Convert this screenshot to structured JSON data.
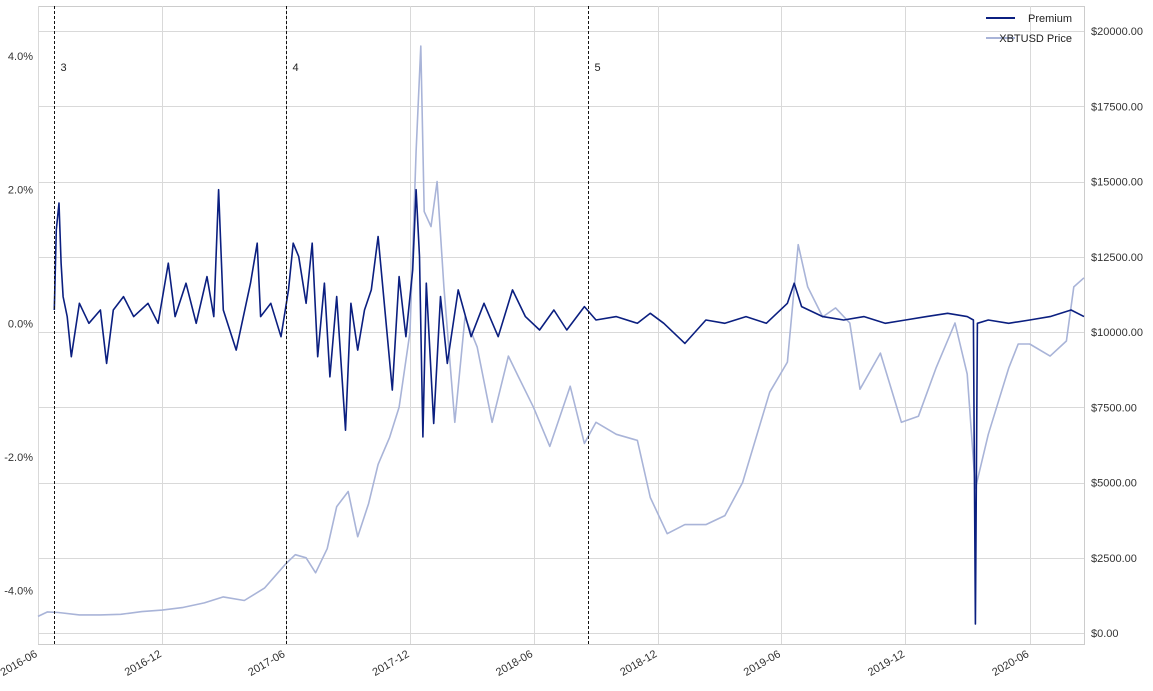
{
  "chart_data": {
    "type": "line",
    "title": "",
    "xlabel": "",
    "ylabel_left": "",
    "ylabel_right": "",
    "grid": true,
    "legend_position": "top-right",
    "x_range": [
      "2016-06-01",
      "2020-08-20"
    ],
    "y_left_range": [
      -4.8,
      4.75
    ],
    "y_right_range": [
      0,
      20000
    ],
    "y_left_ticks": [
      -4.0,
      -2.0,
      0.0,
      2.0,
      4.0
    ],
    "y_left_tick_labels": [
      "-4.0%",
      "-2.0%",
      "0.0%",
      "2.0%",
      "4.0%"
    ],
    "y_right_ticks": [
      0,
      2500,
      5000,
      7500,
      10000,
      12500,
      15000,
      17500,
      20000
    ],
    "y_right_tick_labels": [
      "$0.00",
      "$2500.00",
      "$5000.00",
      "$7500.00",
      "$10000.00",
      "$12500.00",
      "$15000.00",
      "$17500.00",
      "$20000.00"
    ],
    "x_ticks": [
      "2016-06-01",
      "2016-12-01",
      "2017-06-01",
      "2017-12-01",
      "2018-06-01",
      "2018-12-01",
      "2019-06-01",
      "2019-12-01",
      "2020-06-01"
    ],
    "x_tick_labels": [
      "2016-06",
      "2016-12",
      "2017-06",
      "2017-12",
      "2018-06",
      "2018-12",
      "2019-06",
      "2019-12",
      "2020-06"
    ],
    "vlines": [
      {
        "date": "2016-06-25",
        "label": "3"
      },
      {
        "date": "2017-06-01",
        "label": "4"
      },
      {
        "date": "2018-08-20",
        "label": "5"
      }
    ],
    "series": [
      {
        "name": "Premium",
        "axis": "left",
        "color": "#0b1f80",
        "points": [
          [
            "2016-06-25",
            0.2
          ],
          [
            "2016-06-28",
            1.4
          ],
          [
            "2016-07-02",
            1.8
          ],
          [
            "2016-07-05",
            0.9
          ],
          [
            "2016-07-08",
            0.4
          ],
          [
            "2016-07-14",
            0.1
          ],
          [
            "2016-07-20",
            -0.5
          ],
          [
            "2016-08-01",
            0.3
          ],
          [
            "2016-08-15",
            0.0
          ],
          [
            "2016-09-01",
            0.2
          ],
          [
            "2016-09-10",
            -0.6
          ],
          [
            "2016-09-20",
            0.2
          ],
          [
            "2016-10-05",
            0.4
          ],
          [
            "2016-10-20",
            0.1
          ],
          [
            "2016-11-10",
            0.3
          ],
          [
            "2016-11-25",
            0.0
          ],
          [
            "2016-12-10",
            0.9
          ],
          [
            "2016-12-20",
            0.1
          ],
          [
            "2017-01-05",
            0.6
          ],
          [
            "2017-01-20",
            0.0
          ],
          [
            "2017-02-05",
            0.7
          ],
          [
            "2017-02-15",
            0.1
          ],
          [
            "2017-02-22",
            2.0
          ],
          [
            "2017-03-01",
            0.2
          ],
          [
            "2017-03-20",
            -0.4
          ],
          [
            "2017-04-10",
            0.6
          ],
          [
            "2017-04-20",
            1.2
          ],
          [
            "2017-04-25",
            0.1
          ],
          [
            "2017-05-10",
            0.3
          ],
          [
            "2017-05-25",
            -0.2
          ],
          [
            "2017-06-05",
            0.5
          ],
          [
            "2017-06-12",
            1.2
          ],
          [
            "2017-06-20",
            1.0
          ],
          [
            "2017-07-01",
            0.3
          ],
          [
            "2017-07-10",
            1.2
          ],
          [
            "2017-07-18",
            -0.5
          ],
          [
            "2017-07-28",
            0.6
          ],
          [
            "2017-08-05",
            -0.8
          ],
          [
            "2017-08-15",
            0.4
          ],
          [
            "2017-08-28",
            -1.6
          ],
          [
            "2017-09-05",
            0.3
          ],
          [
            "2017-09-15",
            -0.4
          ],
          [
            "2017-09-25",
            0.2
          ],
          [
            "2017-10-05",
            0.5
          ],
          [
            "2017-10-15",
            1.3
          ],
          [
            "2017-10-25",
            0.2
          ],
          [
            "2017-11-05",
            -1.0
          ],
          [
            "2017-11-15",
            0.7
          ],
          [
            "2017-11-25",
            -0.2
          ],
          [
            "2017-12-05",
            0.8
          ],
          [
            "2017-12-10",
            2.0
          ],
          [
            "2017-12-15",
            1.0
          ],
          [
            "2017-12-20",
            -1.7
          ],
          [
            "2017-12-25",
            0.6
          ],
          [
            "2018-01-05",
            -1.5
          ],
          [
            "2018-01-15",
            0.4
          ],
          [
            "2018-01-25",
            -0.6
          ],
          [
            "2018-02-10",
            0.5
          ],
          [
            "2018-03-01",
            -0.2
          ],
          [
            "2018-03-20",
            0.3
          ],
          [
            "2018-04-10",
            -0.2
          ],
          [
            "2018-05-01",
            0.5
          ],
          [
            "2018-05-20",
            0.1
          ],
          [
            "2018-06-10",
            -0.1
          ],
          [
            "2018-07-01",
            0.2
          ],
          [
            "2018-07-20",
            -0.1
          ],
          [
            "2018-08-15",
            0.25
          ],
          [
            "2018-09-01",
            0.05
          ],
          [
            "2018-10-01",
            0.1
          ],
          [
            "2018-11-01",
            0.0
          ],
          [
            "2018-11-20",
            0.15
          ],
          [
            "2018-12-10",
            0.0
          ],
          [
            "2019-01-10",
            -0.3
          ],
          [
            "2019-02-10",
            0.05
          ],
          [
            "2019-03-10",
            0.0
          ],
          [
            "2019-04-10",
            0.1
          ],
          [
            "2019-05-10",
            0.0
          ],
          [
            "2019-06-10",
            0.3
          ],
          [
            "2019-06-20",
            0.6
          ],
          [
            "2019-07-01",
            0.25
          ],
          [
            "2019-08-01",
            0.1
          ],
          [
            "2019-09-01",
            0.05
          ],
          [
            "2019-10-01",
            0.1
          ],
          [
            "2019-11-01",
            0.0
          ],
          [
            "2019-12-01",
            0.05
          ],
          [
            "2020-01-01",
            0.1
          ],
          [
            "2020-02-01",
            0.15
          ],
          [
            "2020-03-01",
            0.1
          ],
          [
            "2020-03-10",
            0.05
          ],
          [
            "2020-03-13",
            -4.5
          ],
          [
            "2020-03-16",
            0.0
          ],
          [
            "2020-04-01",
            0.05
          ],
          [
            "2020-05-01",
            0.0
          ],
          [
            "2020-06-01",
            0.05
          ],
          [
            "2020-07-01",
            0.1
          ],
          [
            "2020-08-01",
            0.2
          ],
          [
            "2020-08-20",
            0.1
          ]
        ]
      },
      {
        "name": "XBTUSD Price",
        "axis": "right",
        "color": "#a9b4d8",
        "points": [
          [
            "2016-06-01",
            550
          ],
          [
            "2016-06-15",
            700
          ],
          [
            "2016-07-01",
            680
          ],
          [
            "2016-08-01",
            600
          ],
          [
            "2016-09-01",
            600
          ],
          [
            "2016-10-01",
            620
          ],
          [
            "2016-11-01",
            710
          ],
          [
            "2016-12-01",
            760
          ],
          [
            "2017-01-01",
            850
          ],
          [
            "2017-02-01",
            1000
          ],
          [
            "2017-03-01",
            1200
          ],
          [
            "2017-04-01",
            1080
          ],
          [
            "2017-05-01",
            1500
          ],
          [
            "2017-06-01",
            2300
          ],
          [
            "2017-06-15",
            2600
          ],
          [
            "2017-07-01",
            2500
          ],
          [
            "2017-07-15",
            2000
          ],
          [
            "2017-08-01",
            2800
          ],
          [
            "2017-08-15",
            4200
          ],
          [
            "2017-09-01",
            4700
          ],
          [
            "2017-09-15",
            3200
          ],
          [
            "2017-10-01",
            4300
          ],
          [
            "2017-10-15",
            5600
          ],
          [
            "2017-11-01",
            6500
          ],
          [
            "2017-11-15",
            7500
          ],
          [
            "2017-12-01",
            10000
          ],
          [
            "2017-12-10",
            16000
          ],
          [
            "2017-12-17",
            19500
          ],
          [
            "2017-12-22",
            14000
          ],
          [
            "2018-01-01",
            13500
          ],
          [
            "2018-01-10",
            15000
          ],
          [
            "2018-01-20",
            11500
          ],
          [
            "2018-02-05",
            7000
          ],
          [
            "2018-02-20",
            10500
          ],
          [
            "2018-03-10",
            9500
          ],
          [
            "2018-04-01",
            7000
          ],
          [
            "2018-04-25",
            9200
          ],
          [
            "2018-05-10",
            8500
          ],
          [
            "2018-06-01",
            7500
          ],
          [
            "2018-06-25",
            6200
          ],
          [
            "2018-07-25",
            8200
          ],
          [
            "2018-08-15",
            6300
          ],
          [
            "2018-09-01",
            7000
          ],
          [
            "2018-10-01",
            6600
          ],
          [
            "2018-11-01",
            6400
          ],
          [
            "2018-11-20",
            4500
          ],
          [
            "2018-12-15",
            3300
          ],
          [
            "2019-01-10",
            3600
          ],
          [
            "2019-02-10",
            3600
          ],
          [
            "2019-03-10",
            3900
          ],
          [
            "2019-04-05",
            5000
          ],
          [
            "2019-05-15",
            8000
          ],
          [
            "2019-06-10",
            9000
          ],
          [
            "2019-06-26",
            12900
          ],
          [
            "2019-07-10",
            11500
          ],
          [
            "2019-08-01",
            10500
          ],
          [
            "2019-08-20",
            10800
          ],
          [
            "2019-09-10",
            10300
          ],
          [
            "2019-09-25",
            8100
          ],
          [
            "2019-10-25",
            9300
          ],
          [
            "2019-11-25",
            7000
          ],
          [
            "2019-12-20",
            7200
          ],
          [
            "2020-01-15",
            8800
          ],
          [
            "2020-02-12",
            10300
          ],
          [
            "2020-03-01",
            8600
          ],
          [
            "2020-03-13",
            4800
          ],
          [
            "2020-04-01",
            6600
          ],
          [
            "2020-05-01",
            8800
          ],
          [
            "2020-05-15",
            9600
          ],
          [
            "2020-06-01",
            9600
          ],
          [
            "2020-07-01",
            9200
          ],
          [
            "2020-07-25",
            9700
          ],
          [
            "2020-08-05",
            11500
          ],
          [
            "2020-08-20",
            11800
          ]
        ]
      }
    ]
  }
}
